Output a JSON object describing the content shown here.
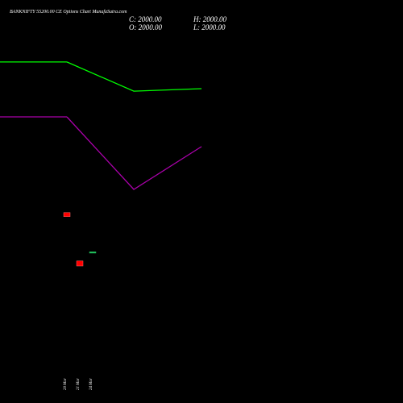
{
  "chart_data": {
    "type": "candlestick",
    "title": "BANKNIFTY 55200.00 CE Options Chart MunafaSutra.com",
    "info": [
      "C: 2000.00",
      "H: 2000.00",
      "O: 2000.00",
      "L: 2000.00"
    ],
    "categories": [
      "20 Mar",
      "21 Mar",
      "24 Mar"
    ],
    "open": [
      2078,
      1982,
      2000
    ],
    "high": [
      2078,
      1982,
      2000
    ],
    "low": [
      2070,
      1972,
      2000
    ],
    "close": [
      2070,
      1972,
      2000
    ],
    "up_color": "#22c55e",
    "down_color": "#ff0000",
    "ylim": [
      1700,
      2500
    ],
    "lines": [
      {
        "color": "#00ff00",
        "values": [
          2377,
          2319,
          2324
        ]
      },
      {
        "color": "#aa00aa",
        "values": [
          2268,
          2124,
          2209
        ]
      }
    ]
  }
}
